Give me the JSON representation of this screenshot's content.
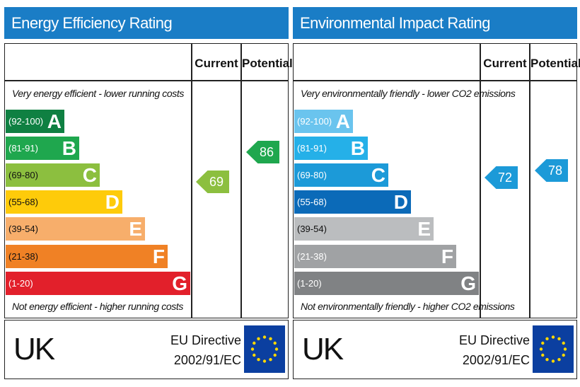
{
  "chart_data": [
    {
      "type": "table",
      "title": "Energy Efficiency Rating",
      "columns": [
        "Current",
        "Potential"
      ],
      "top_caption": "Very energy efficient - lower running costs",
      "bottom_caption": "Not energy efficient - higher running costs",
      "bands": [
        {
          "range": "(92-100)",
          "letter": "A",
          "color": "#0f8042"
        },
        {
          "range": "(81-91)",
          "letter": "B",
          "color": "#1fa74e"
        },
        {
          "range": "(69-80)",
          "letter": "C",
          "color": "#8cbf3f"
        },
        {
          "range": "(55-68)",
          "letter": "D",
          "color": "#fecb0a"
        },
        {
          "range": "(39-54)",
          "letter": "E",
          "color": "#f7ae6b"
        },
        {
          "range": "(21-38)",
          "letter": "F",
          "color": "#f08125"
        },
        {
          "range": "(1-20)",
          "letter": "G",
          "color": "#e2202b"
        }
      ],
      "current": {
        "value": "69",
        "color": "#8cbf3f"
      },
      "potential": {
        "value": "86",
        "color": "#1fa74e"
      }
    },
    {
      "type": "table",
      "title": "Environmental Impact Rating",
      "columns": [
        "Current",
        "Potential"
      ],
      "top_caption": "Very environmentally friendly - lower CO2 emissions",
      "bottom_caption": "Not environmentally friendly - higher CO2 emissions",
      "bands": [
        {
          "range": "(92-100)",
          "letter": "A",
          "color": "#6ac4ee"
        },
        {
          "range": "(81-91)",
          "letter": "B",
          "color": "#25b0e8"
        },
        {
          "range": "(69-80)",
          "letter": "C",
          "color": "#1c9ad8"
        },
        {
          "range": "(55-68)",
          "letter": "D",
          "color": "#0b6ab8"
        },
        {
          "range": "(39-54)",
          "letter": "E",
          "color": "#bbbdbf"
        },
        {
          "range": "(21-38)",
          "letter": "F",
          "color": "#a0a2a4"
        },
        {
          "range": "(1-20)",
          "letter": "G",
          "color": "#808284"
        }
      ],
      "current": {
        "value": "72",
        "color": "#1c9ad8"
      },
      "potential": {
        "value": "78",
        "color": "#1c9ad8"
      }
    }
  ],
  "footer": {
    "country": "UK",
    "directive_line1": "EU Directive",
    "directive_line2": "2002/91/EC"
  }
}
